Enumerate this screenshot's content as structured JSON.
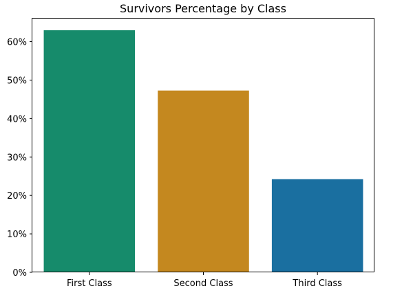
{
  "chart_data": {
    "type": "bar",
    "title": "Survivors Percentage by Class",
    "xlabel": "",
    "ylabel": "",
    "categories": [
      "First Class",
      "Second Class",
      "Third Class"
    ],
    "values": [
      62.96,
      47.28,
      24.24
    ],
    "colors": [
      "#168b6b",
      "#c4881f",
      "#1a6fa0"
    ],
    "ylim": [
      0,
      66
    ],
    "yticks": [
      0,
      10,
      20,
      30,
      40,
      50,
      60
    ],
    "ytick_labels": [
      "0%",
      "10%",
      "20%",
      "30%",
      "40%",
      "50%",
      "60%"
    ],
    "grid": false,
    "legend": false
  }
}
